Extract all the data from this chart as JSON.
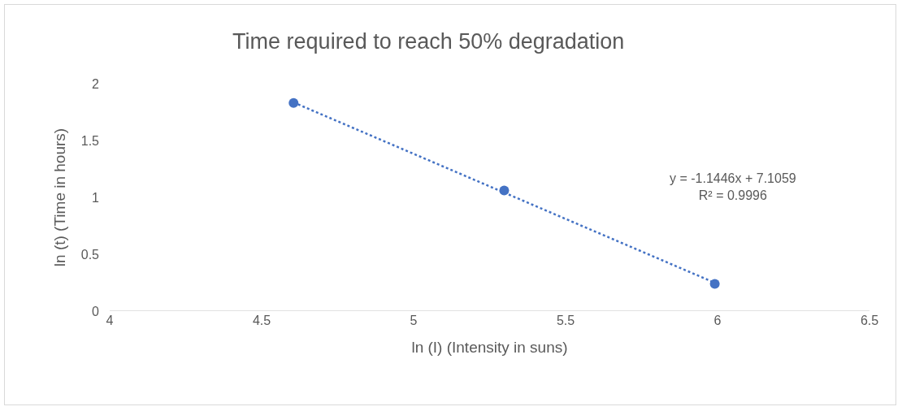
{
  "chart_data": {
    "type": "scatter",
    "title": "Time required to reach 50% degradation",
    "xlabel": "ln (I) (Intensity in suns)",
    "ylabel": "ln (t) (Time in hours)",
    "series": [
      {
        "color": "#4472c4",
        "x": [
          4.605,
          5.298,
          5.991
        ],
        "values": [
          1.83,
          1.06,
          0.24
        ],
        "marker": "circle"
      },
      {
        "type": "line",
        "color": "#4472c4",
        "x": [
          4.605,
          5.991
        ],
        "values": [
          1.835,
          0.249
        ],
        "marker": "none",
        "line_style": "dotted"
      }
    ],
    "annotations": [
      "y = -1.1446x + 7.1059\nR² = 0.9996"
    ],
    "xlim": [
      4,
      6.5
    ],
    "xticks": [
      4,
      4.5,
      5,
      5.5,
      6,
      6.5
    ],
    "ylim": [
      0,
      2
    ],
    "yticks": [
      0,
      0.5,
      1,
      1.5,
      2
    ],
    "grid": false
  }
}
